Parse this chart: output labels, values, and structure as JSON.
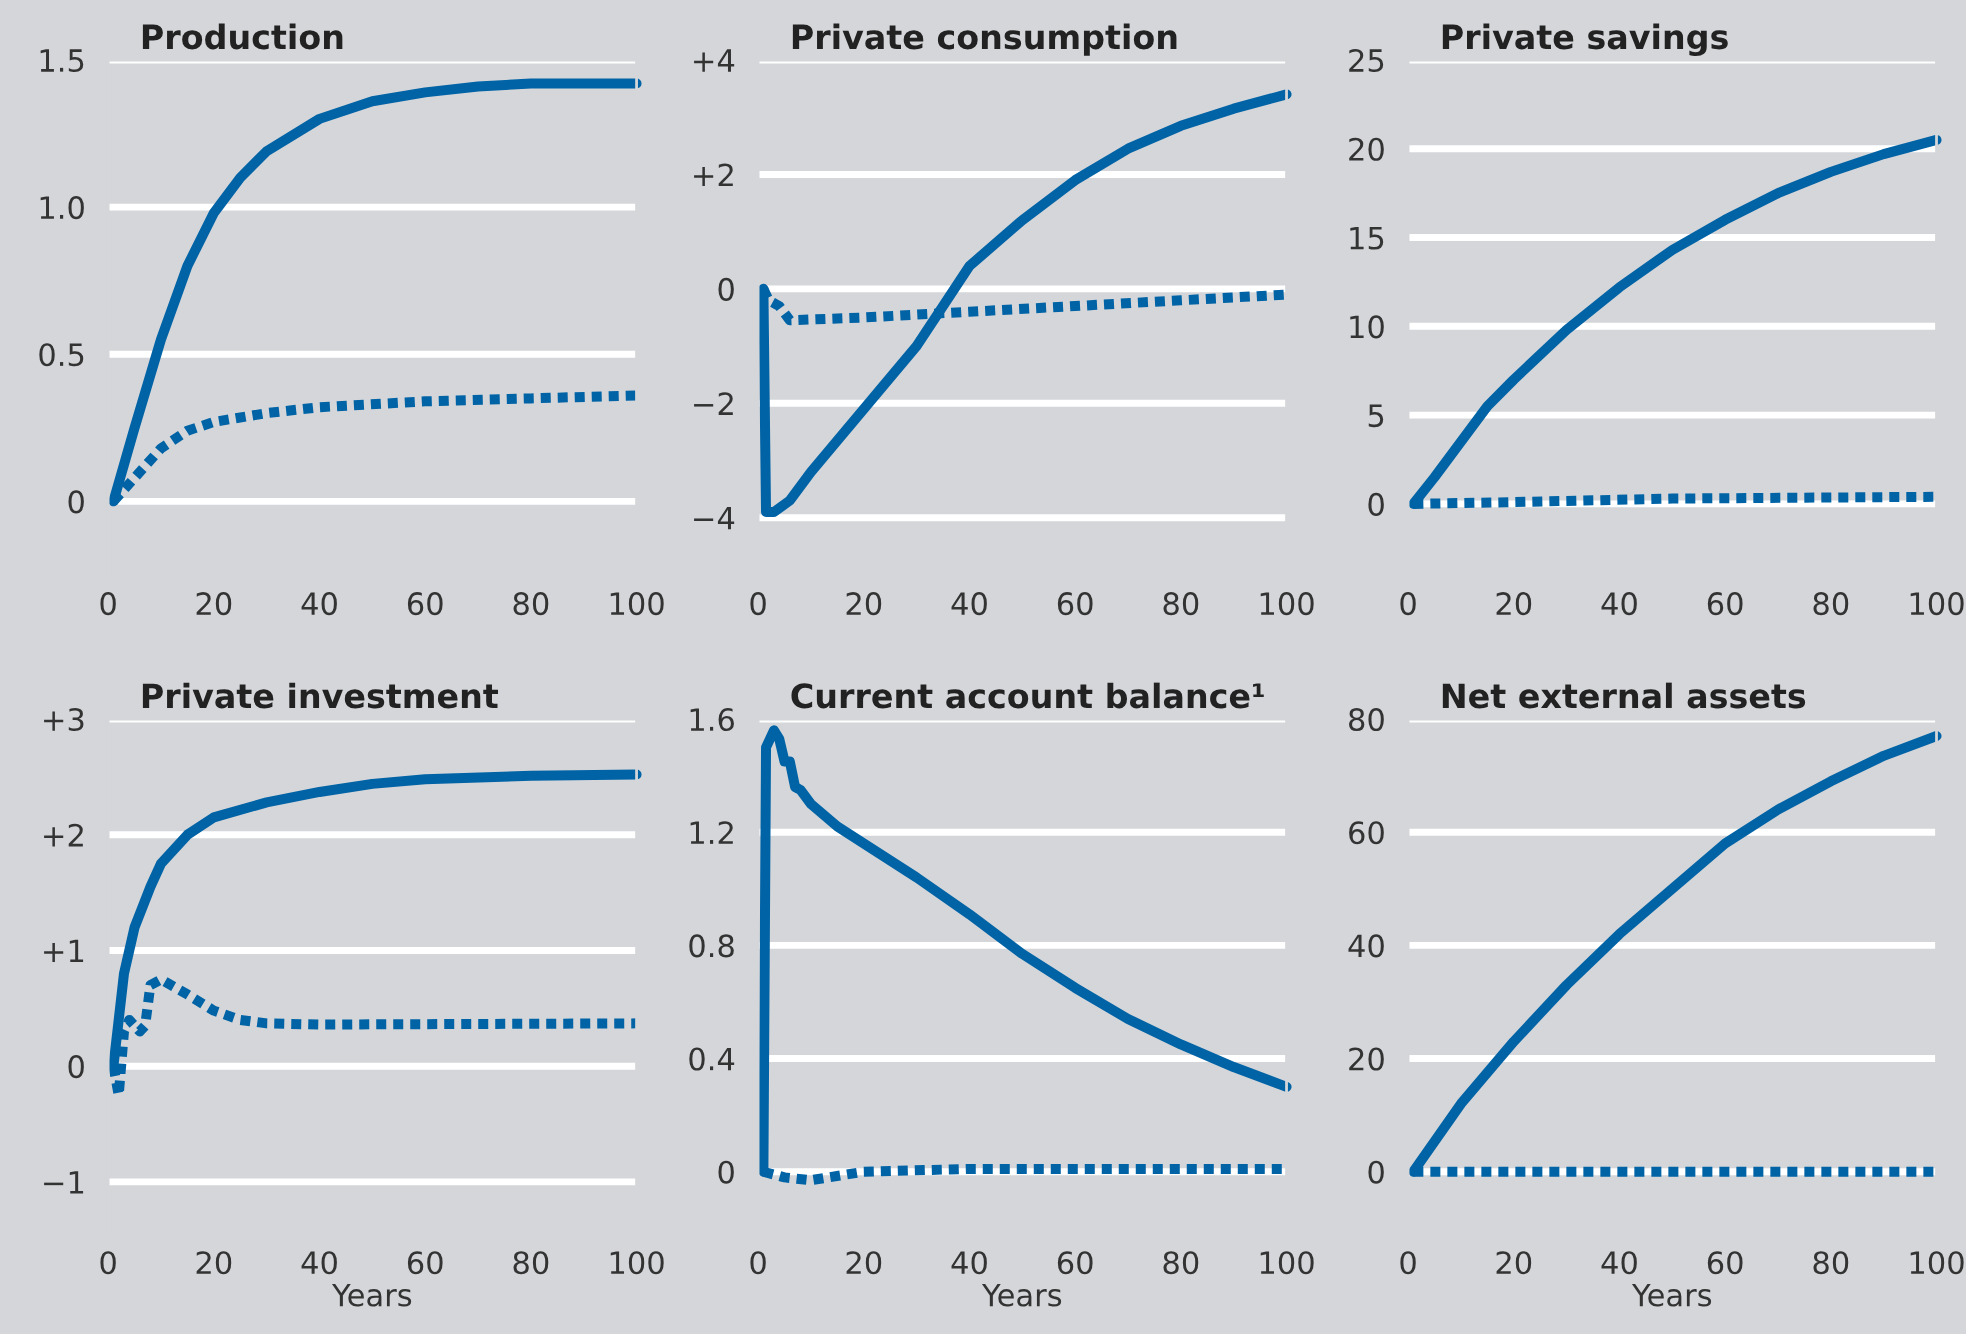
{
  "chart_data": [
    {
      "type": "line",
      "title": "Production",
      "xlim": [
        0,
        100
      ],
      "xticks": [
        0,
        20,
        40,
        60,
        80,
        100
      ],
      "ylim": [
        -0.25,
        1.5
      ],
      "yticks": [
        {
          "value": 0,
          "label": "0"
        },
        {
          "value": 0.5,
          "label": "0.5"
        },
        {
          "value": 1.0,
          "label": "1.0"
        },
        {
          "value": 1.5,
          "label": "1.5"
        }
      ],
      "grid": "y",
      "series": [
        {
          "color": "#0063a6",
          "line_style": "solid",
          "x": [
            1,
            5,
            10,
            15,
            20,
            25,
            30,
            40,
            50,
            60,
            70,
            80,
            90,
            100
          ],
          "values": [
            0,
            0.25,
            0.55,
            0.8,
            0.98,
            1.1,
            1.19,
            1.3,
            1.36,
            1.39,
            1.41,
            1.42,
            1.42,
            1.42
          ]
        },
        {
          "color": "#0063a6",
          "line_style": "dotted",
          "x": [
            1,
            5,
            10,
            15,
            20,
            30,
            40,
            60,
            80,
            100
          ],
          "values": [
            0,
            0.08,
            0.18,
            0.24,
            0.27,
            0.3,
            0.32,
            0.34,
            0.35,
            0.36
          ]
        }
      ]
    },
    {
      "type": "line",
      "title": "Private consumption",
      "xlim": [
        0,
        100
      ],
      "xticks": [
        0,
        20,
        40,
        60,
        80,
        100
      ],
      "ylim": [
        -5,
        4
      ],
      "yticks": [
        {
          "value": -4,
          "label": "−4"
        },
        {
          "value": -2,
          "label": "−2"
        },
        {
          "value": 0,
          "label": "0"
        },
        {
          "value": 2,
          "label": "+2"
        },
        {
          "value": 4,
          "label": "+4"
        }
      ],
      "grid": "y",
      "series": [
        {
          "color": "#0063a6",
          "line_style": "solid",
          "x": [
            1,
            1.5,
            3,
            6,
            10,
            20,
            30,
            40,
            50,
            60,
            70,
            80,
            90,
            100
          ],
          "values": [
            0,
            -3.9,
            -3.9,
            -3.7,
            -3.2,
            -2.1,
            -1.0,
            0.4,
            1.2,
            1.9,
            2.45,
            2.85,
            3.15,
            3.4
          ]
        },
        {
          "color": "#0063a6",
          "line_style": "dotted",
          "x": [
            1,
            2,
            4,
            6,
            20,
            40,
            60,
            80,
            100
          ],
          "values": [
            0,
            -0.2,
            -0.3,
            -0.55,
            -0.5,
            -0.4,
            -0.3,
            -0.2,
            -0.1
          ]
        }
      ]
    },
    {
      "type": "line",
      "title": "Private savings",
      "xlim": [
        0,
        100
      ],
      "xticks": [
        0,
        20,
        40,
        60,
        80,
        100
      ],
      "ylim": [
        -4,
        25
      ],
      "yticks": [
        0,
        5,
        10,
        15,
        20,
        25
      ],
      "grid": "y",
      "series": [
        {
          "color": "#0063a6",
          "line_style": "solid",
          "x": [
            1,
            5,
            10,
            15,
            20,
            30,
            40,
            50,
            60,
            70,
            80,
            90,
            100
          ],
          "values": [
            0,
            1.5,
            3.5,
            5.5,
            7,
            9.8,
            12.2,
            14.3,
            16,
            17.5,
            18.7,
            19.7,
            20.5
          ]
        },
        {
          "color": "#0063a6",
          "line_style": "dotted",
          "x": [
            1,
            20,
            50,
            100
          ],
          "values": [
            0,
            0.1,
            0.3,
            0.4
          ]
        }
      ]
    },
    {
      "type": "line",
      "title": "Private investment",
      "xlabel": "Years",
      "xlim": [
        0,
        100
      ],
      "xticks": [
        0,
        20,
        40,
        60,
        80,
        100
      ],
      "ylim": [
        -1.45,
        3
      ],
      "yticks": [
        {
          "value": -1,
          "label": "−1"
        },
        {
          "value": 0,
          "label": "0"
        },
        {
          "value": 1,
          "label": "+1"
        },
        {
          "value": 2,
          "label": "+2"
        },
        {
          "value": 3,
          "label": "+3"
        }
      ],
      "grid": "y",
      "series": [
        {
          "color": "#0063a6",
          "line_style": "solid",
          "x": [
            1,
            2,
            3,
            5,
            8,
            10,
            15,
            20,
            30,
            40,
            50,
            60,
            80,
            100
          ],
          "values": [
            0,
            0.4,
            0.8,
            1.2,
            1.55,
            1.75,
            2.0,
            2.15,
            2.28,
            2.37,
            2.44,
            2.48,
            2.51,
            2.52
          ]
        },
        {
          "color": "#0063a6",
          "line_style": "dotted",
          "x": [
            1,
            2,
            3,
            4,
            5,
            6,
            7,
            8,
            10,
            15,
            20,
            25,
            30,
            40,
            100
          ],
          "values": [
            0,
            -0.25,
            0.3,
            0.4,
            0.35,
            0.3,
            0.35,
            0.7,
            0.75,
            0.62,
            0.48,
            0.4,
            0.37,
            0.36,
            0.37
          ]
        }
      ]
    },
    {
      "type": "line",
      "title": "Current account balance¹",
      "xlabel": "Years",
      "xlim": [
        0,
        100
      ],
      "xticks": [
        0,
        20,
        40,
        60,
        80,
        100
      ],
      "ylim": [
        -0.22,
        1.6
      ],
      "yticks": [
        {
          "value": 0,
          "label": "0"
        },
        {
          "value": 0.4,
          "label": "0.4"
        },
        {
          "value": 0.8,
          "label": "0.8"
        },
        {
          "value": 1.2,
          "label": "1.2"
        },
        {
          "value": 1.6,
          "label": "1.6"
        }
      ],
      "grid": "y",
      "series": [
        {
          "color": "#0063a6",
          "line_style": "solid",
          "x": [
            1,
            1.5,
            3,
            4,
            5,
            6,
            7,
            8,
            10,
            15,
            20,
            30,
            40,
            50,
            60,
            70,
            80,
            90,
            100
          ],
          "values": [
            0,
            1.5,
            1.56,
            1.53,
            1.45,
            1.45,
            1.36,
            1.35,
            1.3,
            1.22,
            1.16,
            1.04,
            0.91,
            0.77,
            0.65,
            0.54,
            0.45,
            0.37,
            0.3
          ]
        },
        {
          "color": "#0063a6",
          "line_style": "dotted",
          "x": [
            1,
            5,
            10,
            20,
            40,
            100
          ],
          "values": [
            0,
            -0.02,
            -0.03,
            0,
            0.01,
            0.01
          ]
        }
      ]
    },
    {
      "type": "line",
      "title": "Net external assets",
      "xlabel": "Years",
      "xlim": [
        0,
        100
      ],
      "xticks": [
        0,
        20,
        40,
        60,
        80,
        100
      ],
      "ylim": [
        -11,
        80
      ],
      "yticks": [
        0,
        20,
        40,
        60,
        80
      ],
      "grid": "y",
      "series": [
        {
          "color": "#0063a6",
          "line_style": "solid",
          "x": [
            1,
            10,
            20,
            30,
            40,
            50,
            60,
            70,
            80,
            90,
            100
          ],
          "values": [
            0,
            12,
            23,
            33,
            42,
            50,
            58,
            64,
            69,
            73.5,
            77
          ]
        },
        {
          "color": "#0063a6",
          "line_style": "dotted",
          "x": [
            1,
            100
          ],
          "values": [
            0,
            0
          ]
        }
      ]
    }
  ]
}
